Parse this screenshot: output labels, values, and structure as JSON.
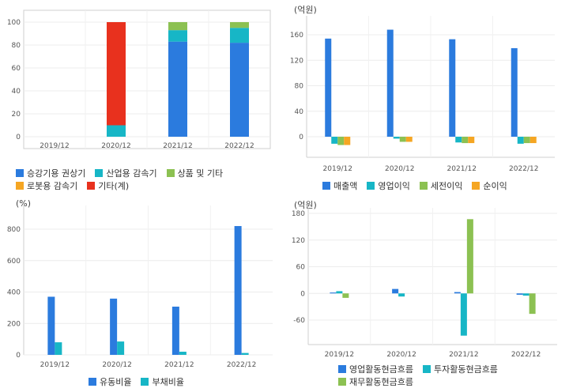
{
  "chart_data": [
    {
      "type": "bar",
      "stacked": true,
      "unit": "",
      "categories": [
        "2019/12",
        "2020/12",
        "2021/12",
        "2022/12"
      ],
      "ylim": [
        0,
        100
      ],
      "yticks": [
        "0",
        "20",
        "40",
        "60",
        "80",
        "100"
      ],
      "series": [
        {
          "name": "승강기용 권상기",
          "color": "#2b7bde",
          "values": [
            0,
            0,
            83,
            82
          ]
        },
        {
          "name": "산업용 감속기",
          "color": "#17b6c6",
          "values": [
            0,
            10,
            10,
            13
          ]
        },
        {
          "name": "상품 및 기타",
          "color": "#8cc152",
          "values": [
            0,
            0,
            7,
            5
          ]
        },
        {
          "name": "로봇용 감속기",
          "color": "#f5a623",
          "values": [
            0,
            0,
            0,
            0
          ]
        },
        {
          "name": "기타(계)",
          "color": "#e8311e",
          "values": [
            0,
            90,
            0,
            0
          ]
        }
      ]
    },
    {
      "type": "bar",
      "unit": "(억원)",
      "categories": [
        "2019/12",
        "2020/12",
        "2021/12",
        "2022/12"
      ],
      "ylim": [
        -30,
        180
      ],
      "yticks": [
        "0",
        "40",
        "80",
        "120",
        "160"
      ],
      "series": [
        {
          "name": "매출액",
          "color": "#2b7bde",
          "values": [
            154,
            168,
            153,
            139
          ]
        },
        {
          "name": "영업이익",
          "color": "#17b6c6",
          "values": [
            -11,
            -3,
            -9,
            -11
          ]
        },
        {
          "name": "세전이익",
          "color": "#8cc152",
          "values": [
            -13,
            -8,
            -10,
            -10
          ]
        },
        {
          "name": "순이익",
          "color": "#f5a623",
          "values": [
            -13,
            -8,
            -10,
            -10
          ]
        }
      ]
    },
    {
      "type": "bar",
      "unit": "(%)",
      "categories": [
        "2019/12",
        "2020/12",
        "2021/12",
        "2022/12"
      ],
      "ylim": [
        0,
        900
      ],
      "yticks": [
        "0",
        "200",
        "400",
        "600",
        "800"
      ],
      "series": [
        {
          "name": "유동비율",
          "color": "#2b7bde",
          "values": [
            370,
            358,
            307,
            820
          ]
        },
        {
          "name": "부채비율",
          "color": "#17b6c6",
          "values": [
            80,
            85,
            20,
            12
          ]
        }
      ]
    },
    {
      "type": "bar",
      "unit": "(억원)",
      "categories": [
        "2019/12",
        "2020/12",
        "2021/12",
        "2022/12"
      ],
      "ylim": [
        -120,
        180
      ],
      "yticks": [
        "180",
        "120",
        "60",
        "0",
        "-60"
      ],
      "series": [
        {
          "name": "영업활동현금흐름",
          "color": "#2b7bde",
          "values": [
            2,
            10,
            3,
            -3
          ]
        },
        {
          "name": "투자활동현금흐름",
          "color": "#17b6c6",
          "values": [
            5,
            -7,
            -95,
            -5
          ]
        },
        {
          "name": "재무활동현금흐름",
          "color": "#8cc152",
          "values": [
            -10,
            0,
            167,
            -46
          ]
        }
      ]
    }
  ]
}
